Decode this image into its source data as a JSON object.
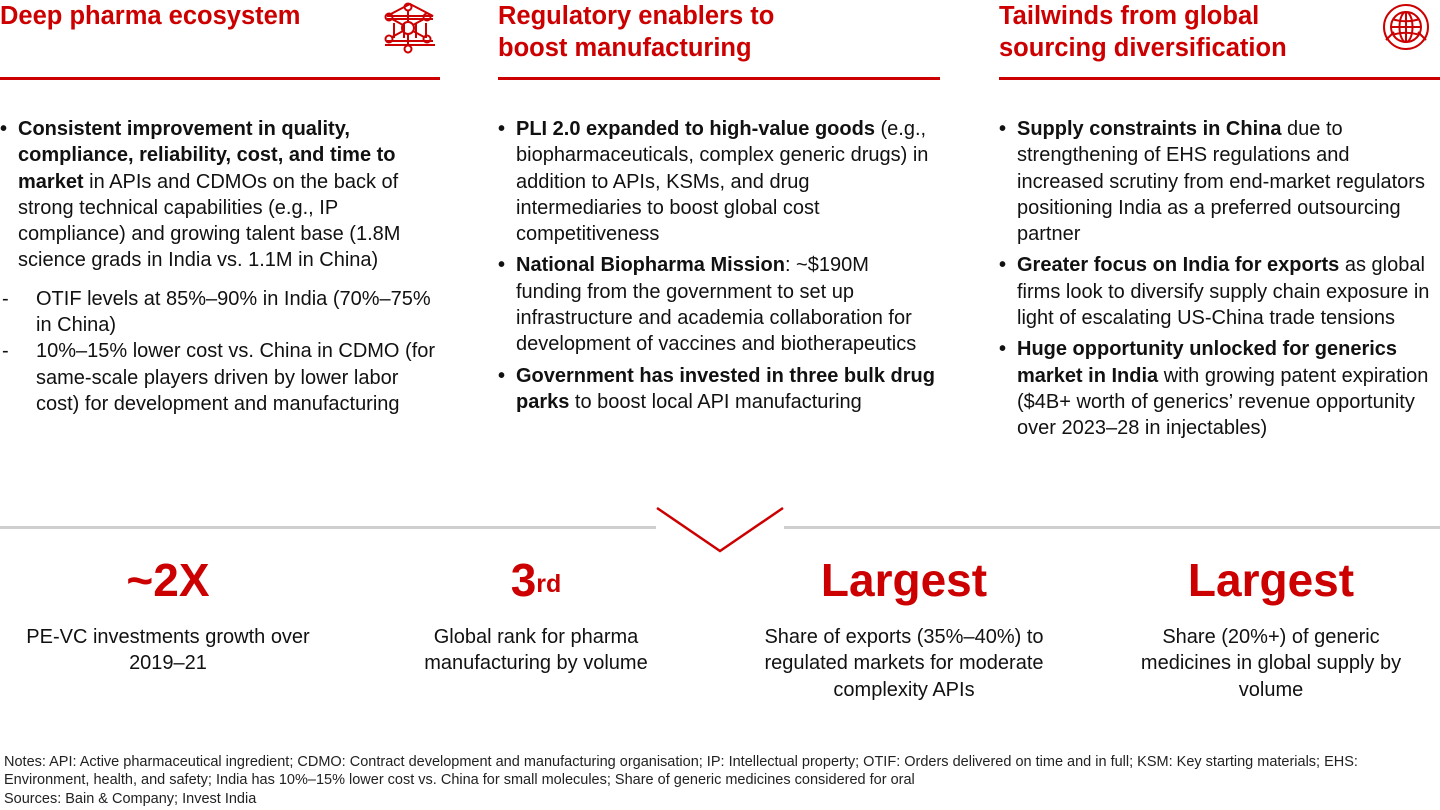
{
  "columns": [
    {
      "title": "Deep pharma ecosystem",
      "icon": "molecule-network-icon",
      "bullets": [
        {
          "bold": "Consistent improvement in quality, compliance, reliability, cost, and time to market",
          "text": " in APIs and CDMOs on the back of strong technical capabilities (e.g., IP compliance) and growing talent base (1.8M science grads in India vs. 1.1M in China)",
          "subs": [
            "OTIF levels at 85%–90% in India (70%–75% in China)",
            "10%–15% lower cost vs. China in CDMO (for same-scale players driven by lower labor cost) for development and manufacturing"
          ]
        }
      ]
    },
    {
      "title_line1": "Regulatory enablers to",
      "title_line2": "boost manufacturing",
      "icon": "government-building-icon",
      "bullets": [
        {
          "bold": "PLI 2.0 expanded to high-value goods",
          "text": " (e.g., biopharmaceuticals, complex generic drugs) in addition to APIs, KSMs, and drug intermediaries to boost global cost competitiveness"
        },
        {
          "bold": "National Biopharma Mission",
          "text": ": ~$190M funding from the government to set up infrastructure and academia collaboration for development of vaccines and biotherapeutics"
        },
        {
          "bold": "Government has invested in three bulk drug parks",
          "text": " to boost local API manufacturing"
        }
      ]
    },
    {
      "title_line1": "Tailwinds from global",
      "title_line2": "sourcing diversification",
      "icon": "globe-icon",
      "bullets": [
        {
          "bold": "Supply constraints in China",
          "text": " due to strengthening of EHS regulations and increased scrutiny from end-market regulators positioning India as a preferred outsourcing partner"
        },
        {
          "bold": "Greater focus on India for exports",
          "text": " as global firms look to diversify supply chain exposure in light of escalating US-China trade tensions"
        },
        {
          "bold": "Huge opportunity unlocked for generics market in India",
          "text": " with growing patent expiration ($4B+ worth of generics’ revenue opportunity over 2023–28 in injectables)"
        }
      ]
    }
  ],
  "stats": [
    {
      "value": "~2X",
      "description": "PE-VC investments growth over 2019–21"
    },
    {
      "value": "3",
      "superscript": "rd",
      "description": "Global rank for pharma manufacturing by volume"
    },
    {
      "value": "Largest",
      "description": "Share of exports (35%–40%) to regulated markets for moderate complexity APIs"
    },
    {
      "value": "Largest",
      "description": "Share (20%+) of generic medicines in global supply by volume"
    }
  ],
  "notes": "Notes: API: Active pharmaceutical ingredient; CDMO: Contract development and manufacturing organisation; IP: Intellectual property; OTIF: Orders delivered on time and in full; KSM: Key starting materials; EHS: Environment, health, and safety; India has 10%–15% lower cost vs. China for small molecules; Share of generic medicines considered for oral",
  "sources": "Sources: Bain & Company; Invest India",
  "colors": {
    "accent": "#cc0000",
    "divider": "#cfcfcf",
    "text": "#111111"
  }
}
